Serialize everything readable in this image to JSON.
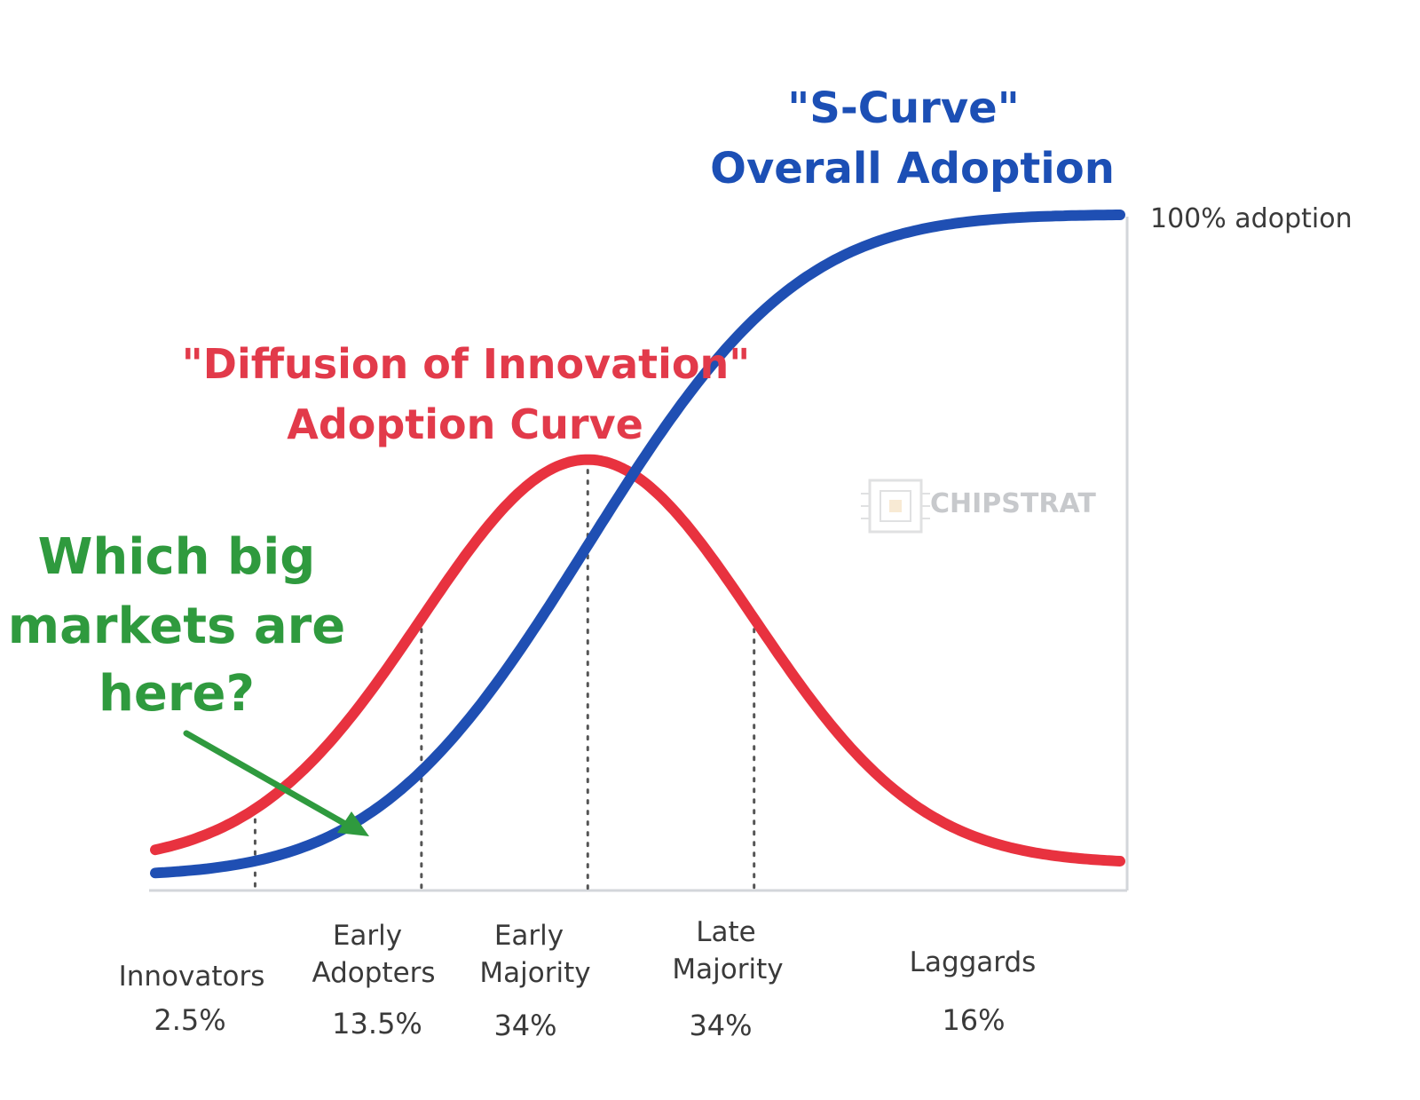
{
  "chart_data": {
    "type": "line",
    "x_domain": [
      -2.6,
      3.2
    ],
    "y_domain": [
      0,
      100
    ],
    "series": [
      {
        "name": "\"Diffusion of Innovation\" Adoption Curve",
        "kind": "bell",
        "color": "#e8323f",
        "mean": 0,
        "sd": 1,
        "start_value_pct": 4,
        "peak_value_pct": 63,
        "end_value_pct": 4
      },
      {
        "name": "\"S-Curve\" Overall Adoption",
        "kind": "cumulative",
        "color": "#1f4fb3",
        "start_value_pct": 0.5,
        "end_value_pct": 100
      }
    ],
    "segments": [
      {
        "name": "Innovators",
        "share": "2.5%"
      },
      {
        "name": "Early Adopters",
        "share": "13.5%"
      },
      {
        "name": "Early Majority",
        "share": "34%"
      },
      {
        "name": "Late Majority",
        "share": "34%"
      },
      {
        "name": "Laggards",
        "share": "16%"
      }
    ],
    "segment_boundaries_sd": [
      -2,
      -1,
      0,
      1
    ],
    "grid": false
  },
  "titles": {
    "s_curve_line1": "\"S-Curve\"",
    "s_curve_line2": "Overall Adoption",
    "diffusion_line1": "\"Diffusion of Innovation\"",
    "diffusion_line2": "Adoption Curve"
  },
  "right_label": "100% adoption",
  "question": {
    "line1": "Which big",
    "line2": "markets are",
    "line3": "here?"
  },
  "labels": {
    "innovators": "Innovators",
    "innovators_pct": "2.5%",
    "early_adopters_1": "Early",
    "early_adopters_2": "Adopters",
    "early_adopters_pct": "13.5%",
    "early_majority_1": "Early",
    "early_majority_2": "Majority",
    "early_majority_pct": "34%",
    "late_majority_1": "Late",
    "late_majority_2": "Majority",
    "late_majority_pct": "34%",
    "laggards": "Laggards",
    "laggards_pct": "16%"
  },
  "watermark": {
    "brand": "CHIPSTRAT"
  },
  "colors": {
    "blue": "#1f4fb3",
    "red": "#e8323f",
    "green": "#2f9a3e",
    "axis": "#d3d6da",
    "dotted": "#555555"
  }
}
